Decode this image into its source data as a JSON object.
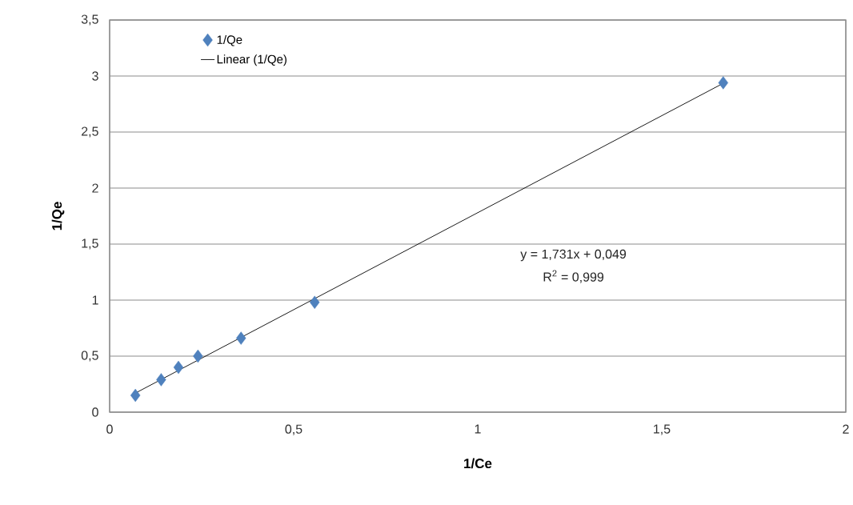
{
  "chart_data": {
    "type": "scatter",
    "xlabel": "1/Ce",
    "ylabel": "1/Qe",
    "series": [
      {
        "name": "1/Qe",
        "color": "#4f81bd",
        "marker": "diamond",
        "x": [
          0.07,
          0.14,
          0.187,
          0.24,
          0.357,
          0.557,
          1.667
        ],
        "values": [
          0.15,
          0.29,
          0.4,
          0.5,
          0.66,
          0.98,
          2.94
        ]
      },
      {
        "name": "Linear (1/Qe)",
        "type": "line",
        "color": "#000000",
        "marker": "none",
        "line_style": "solid",
        "x": [
          0.07,
          1.667
        ],
        "values": [
          0.17,
          2.935
        ]
      }
    ],
    "annotations": [
      "y = 1,731x + 0,049",
      "R$^{2}$ = 0,999"
    ],
    "xlim": [
      0,
      2
    ],
    "ylim": [
      0,
      3.5
    ],
    "xticks": [
      0,
      {
        "value": 0.5,
        "label": "0,5"
      },
      1,
      {
        "value": 1.5,
        "label": "1,5"
      },
      2
    ],
    "yticks": [
      0,
      {
        "value": 0.5,
        "label": "0,5"
      },
      1,
      {
        "value": 1.5,
        "label": "1,5"
      },
      2,
      {
        "value": 2.5,
        "label": "2,5"
      },
      3,
      {
        "value": 3.5,
        "label": "3,5"
      }
    ],
    "grid": "y",
    "legend": "top left"
  }
}
